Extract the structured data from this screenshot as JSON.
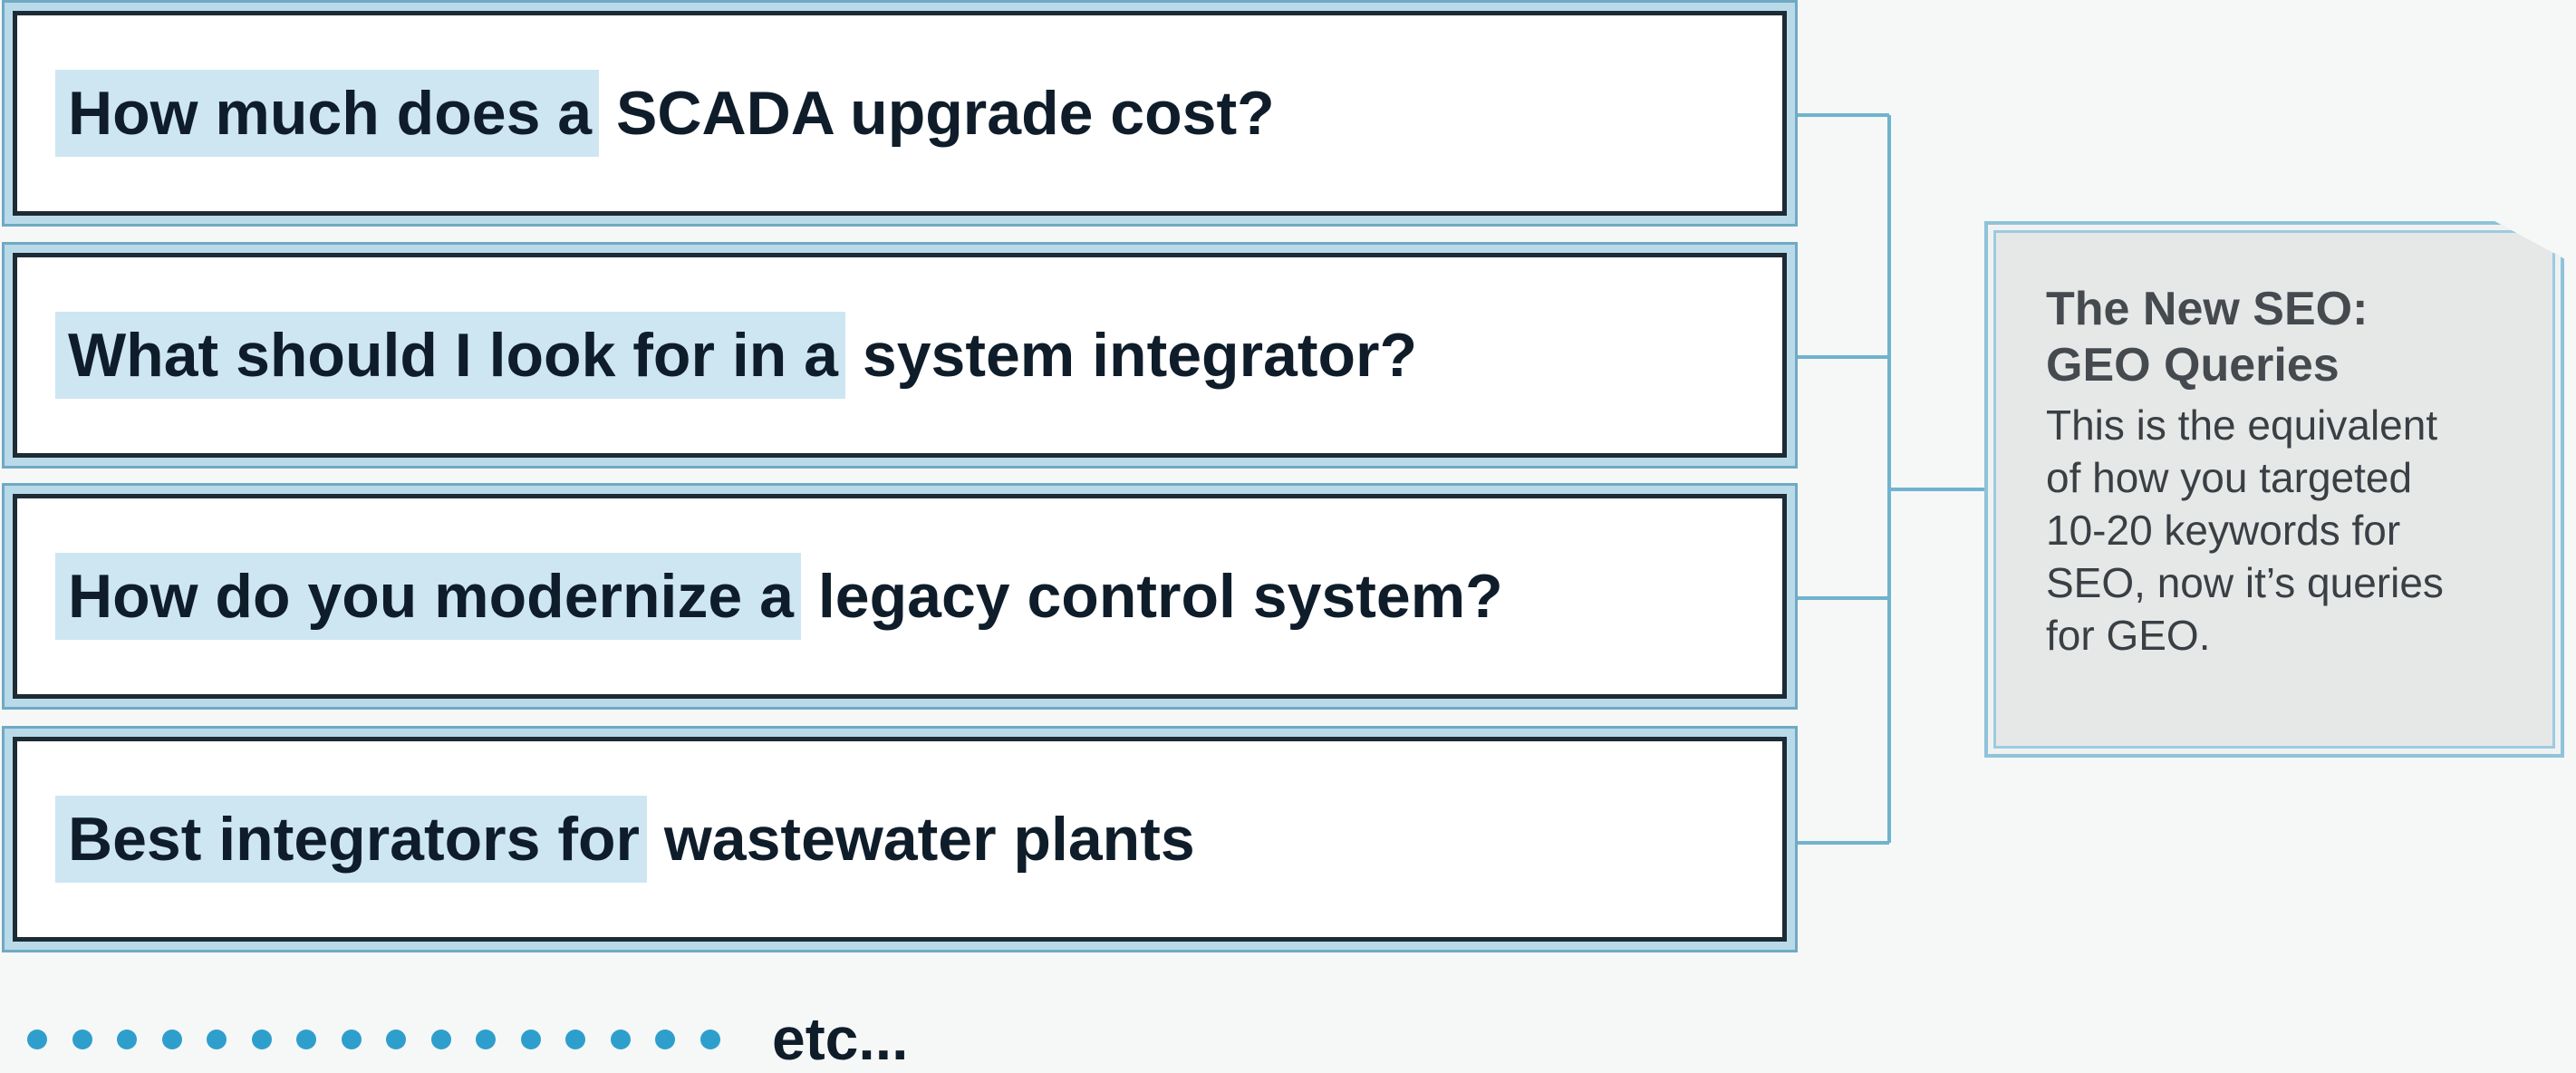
{
  "queries": [
    {
      "highlight": "How much does a",
      "rest": "SCADA upgrade cost?"
    },
    {
      "highlight": "What should I look for in a",
      "rest": "system integrator?"
    },
    {
      "highlight": "How do you modernize a",
      "rest": "legacy control system?"
    },
    {
      "highlight": "Best integrators for",
      "rest": "wastewater plants"
    }
  ],
  "more": "etc...",
  "callout": {
    "title_lines": [
      "The New SEO:",
      "GEO Queries"
    ],
    "body_lines": [
      "This is the equivalent",
      "of how you targeted",
      "10-20 keywords for",
      "SEO, now it’s queries",
      "for GEO."
    ]
  }
}
